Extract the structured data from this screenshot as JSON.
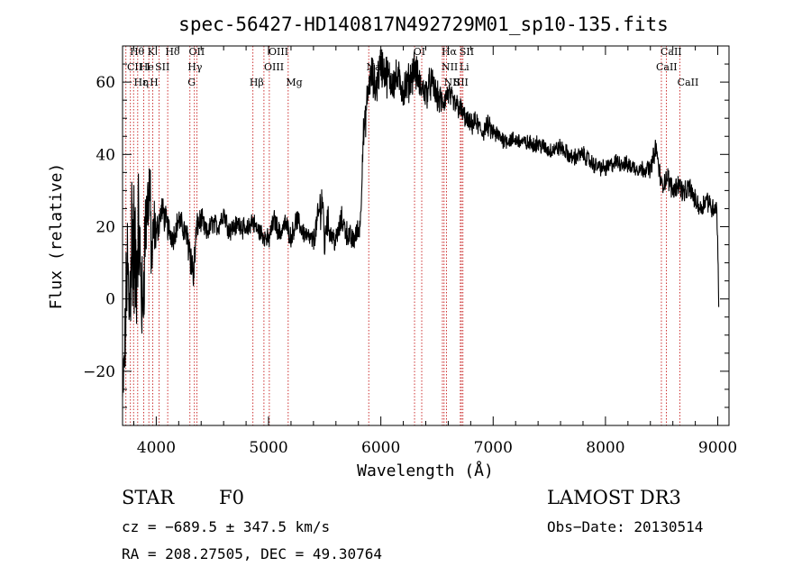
{
  "chart_data": {
    "type": "line",
    "title": "spec-56427-HD140817N492729M01_sp10-135.fits",
    "xlabel": "Wavelength (Å)",
    "ylabel": "Flux (relative)",
    "xlim": [
      3700,
      9100
    ],
    "ylim": [
      -35,
      70
    ],
    "xticks": [
      4000,
      5000,
      6000,
      7000,
      8000,
      9000
    ],
    "yticks": [
      -20,
      0,
      20,
      40,
      60
    ],
    "grid": false,
    "series": [
      {
        "color": "#000000",
        "x": [
          3700,
          3720,
          3740,
          3760,
          3780,
          3800,
          3820,
          3840,
          3860,
          3880,
          3900,
          3920,
          3940,
          3960,
          3980,
          4000,
          4050,
          4100,
          4150,
          4200,
          4250,
          4300,
          4330,
          4360,
          4400,
          4450,
          4500,
          4550,
          4600,
          4650,
          4700,
          4750,
          4800,
          4850,
          4900,
          4950,
          5000,
          5050,
          5100,
          5150,
          5200,
          5250,
          5300,
          5350,
          5400,
          5450,
          5480,
          5500,
          5520,
          5550,
          5600,
          5650,
          5700,
          5750,
          5800,
          5820,
          5840,
          5860,
          5880,
          5900,
          5920,
          5950,
          6000,
          6050,
          6100,
          6150,
          6200,
          6250,
          6300,
          6350,
          6400,
          6450,
          6500,
          6550,
          6600,
          6650,
          6700,
          6750,
          6800,
          6850,
          6900,
          6950,
          7000,
          7100,
          7200,
          7300,
          7400,
          7500,
          7600,
          7700,
          7800,
          7900,
          8000,
          8100,
          8200,
          8300,
          8400,
          8450,
          8500,
          8550,
          8600,
          8650,
          8700,
          8750,
          8800,
          8850,
          8900,
          8950,
          8990,
          9000,
          9010
        ],
        "y": [
          -28,
          -15,
          10,
          -5,
          20,
          14,
          5,
          22,
          8,
          -5,
          18,
          25,
          32,
          10,
          20,
          18,
          25,
          20,
          17,
          22,
          19,
          14,
          6,
          20,
          22,
          18,
          21,
          20,
          24,
          19,
          20,
          21,
          18,
          22,
          19,
          18,
          16,
          22,
          18,
          21,
          17,
          22,
          19,
          17,
          16,
          24,
          28,
          14,
          23,
          18,
          16,
          22,
          18,
          16,
          19,
          22,
          44,
          48,
          56,
          60,
          62,
          58,
          65,
          62,
          60,
          61,
          58,
          60,
          64,
          59,
          57,
          60,
          56,
          54,
          57,
          54,
          53,
          50,
          48,
          49,
          46,
          48,
          46,
          44,
          44,
          43,
          43,
          41,
          42,
          39,
          40,
          37,
          36,
          38,
          37,
          36,
          36,
          42,
          31,
          34,
          30,
          32,
          29,
          31,
          27,
          25,
          28,
          25,
          26,
          15,
          -2
        ],
        "noise": [
          6,
          10,
          14,
          18,
          22,
          20,
          16,
          14,
          14,
          12,
          12,
          10,
          10,
          9,
          8,
          4,
          3.5,
          3.5,
          3,
          3,
          3,
          5,
          6,
          3,
          3,
          2.5,
          2.5,
          2.5,
          2.5,
          2.5,
          2.5,
          2.5,
          2.5,
          2.5,
          2.5,
          2.5,
          2.5,
          2.5,
          2.5,
          2.5,
          2.5,
          2.5,
          2.5,
          2.5,
          2.5,
          4,
          6,
          4,
          4,
          3,
          3,
          3,
          3,
          3,
          3,
          3,
          4,
          4,
          4,
          4,
          5,
          5,
          5,
          5,
          4.5,
          4.5,
          4.5,
          4.5,
          4.5,
          4,
          4,
          4,
          3.5,
          3.5,
          3,
          3,
          3,
          2.5,
          2.5,
          2.5,
          2.5,
          2.5,
          2.5,
          2,
          2,
          2,
          2,
          2,
          2,
          2,
          2,
          2,
          2,
          2,
          2,
          2,
          2,
          2.5,
          2.5,
          2.5,
          2.5,
          2.5,
          2.5,
          2.5,
          2.5,
          2.5,
          2.5,
          2.5,
          2.5,
          2,
          2
        ]
      }
    ],
    "lines": [
      {
        "x": 3730,
        "labels": []
      },
      {
        "x": 3770,
        "labels": []
      },
      {
        "x": 3798,
        "labels": []
      },
      {
        "x": 3835,
        "labels": []
      },
      {
        "x": 3889,
        "labels": []
      },
      {
        "x": 3934,
        "labels": []
      },
      {
        "x": 3968,
        "labels": []
      },
      {
        "x": 4026,
        "labels": []
      },
      {
        "x": 4102,
        "labels": []
      },
      {
        "x": 4300,
        "labels": []
      },
      {
        "x": 4340,
        "labels": []
      },
      {
        "x": 4363,
        "labels": []
      },
      {
        "x": 4861,
        "labels": []
      },
      {
        "x": 4959,
        "labels": []
      },
      {
        "x": 5007,
        "labels": []
      },
      {
        "x": 5175,
        "labels": []
      },
      {
        "x": 5892,
        "labels": []
      },
      {
        "x": 6300,
        "labels": []
      },
      {
        "x": 6364,
        "labels": []
      },
      {
        "x": 6548,
        "labels": []
      },
      {
        "x": 6563,
        "labels": []
      },
      {
        "x": 6584,
        "labels": []
      },
      {
        "x": 6708,
        "labels": []
      },
      {
        "x": 6717,
        "labels": []
      },
      {
        "x": 6731,
        "labels": []
      },
      {
        "x": 8498,
        "labels": []
      },
      {
        "x": 8542,
        "labels": []
      },
      {
        "x": 8662,
        "labels": []
      }
    ],
    "line_labels": [
      {
        "text": "Hθ",
        "x": 3764,
        "row": 0
      },
      {
        "text": "K",
        "x": 3922,
        "row": 0
      },
      {
        "text": "Hδ",
        "x": 4080,
        "row": 0
      },
      {
        "text": "OII",
        "x": 4290,
        "row": 0
      },
      {
        "text": "OIII",
        "x": 5000,
        "row": 0
      },
      {
        "text": "OI",
        "x": 6290,
        "row": 0
      },
      {
        "text": "Hα",
        "x": 6540,
        "row": 0
      },
      {
        "text": "SII",
        "x": 6700,
        "row": 0
      },
      {
        "text": "CaII",
        "x": 8490,
        "row": 0
      },
      {
        "text": "CII",
        "x": 3740,
        "row": 1
      },
      {
        "text": "He",
        "x": 3850,
        "row": 1
      },
      {
        "text": "I",
        "x": 3911,
        "row": 1
      },
      {
        "text": "SII",
        "x": 3990,
        "row": 1
      },
      {
        "text": "Hγ",
        "x": 4280,
        "row": 1
      },
      {
        "text": "OIII",
        "x": 4960,
        "row": 1
      },
      {
        "text": "Na",
        "x": 5870,
        "row": 1
      },
      {
        "text": "NII",
        "x": 6540,
        "row": 1
      },
      {
        "text": "Li",
        "x": 6700,
        "row": 1
      },
      {
        "text": "CaII",
        "x": 8450,
        "row": 1
      },
      {
        "text": "Hε",
        "x": 3800,
        "row": 2
      },
      {
        "text": "η",
        "x": 3880,
        "row": 2
      },
      {
        "text": "H",
        "x": 3942,
        "row": 2
      },
      {
        "text": "G",
        "x": 4280,
        "row": 2
      },
      {
        "text": "Hβ",
        "x": 4830,
        "row": 2
      },
      {
        "text": "Mg",
        "x": 5155,
        "row": 2
      },
      {
        "text": "NII",
        "x": 6560,
        "row": 2
      },
      {
        "text": "SII",
        "x": 6650,
        "row": 2
      },
      {
        "text": "CaII",
        "x": 8640,
        "row": 2
      }
    ]
  },
  "info": {
    "object_type": "STAR",
    "subclass": "F0",
    "survey": "LAMOST DR3",
    "cz": "cz = −689.5 ± 347.5 km/s",
    "obs_date": "Obs−Date: 20130514",
    "coords": "RA = 208.27505, DEC =  49.30764"
  }
}
